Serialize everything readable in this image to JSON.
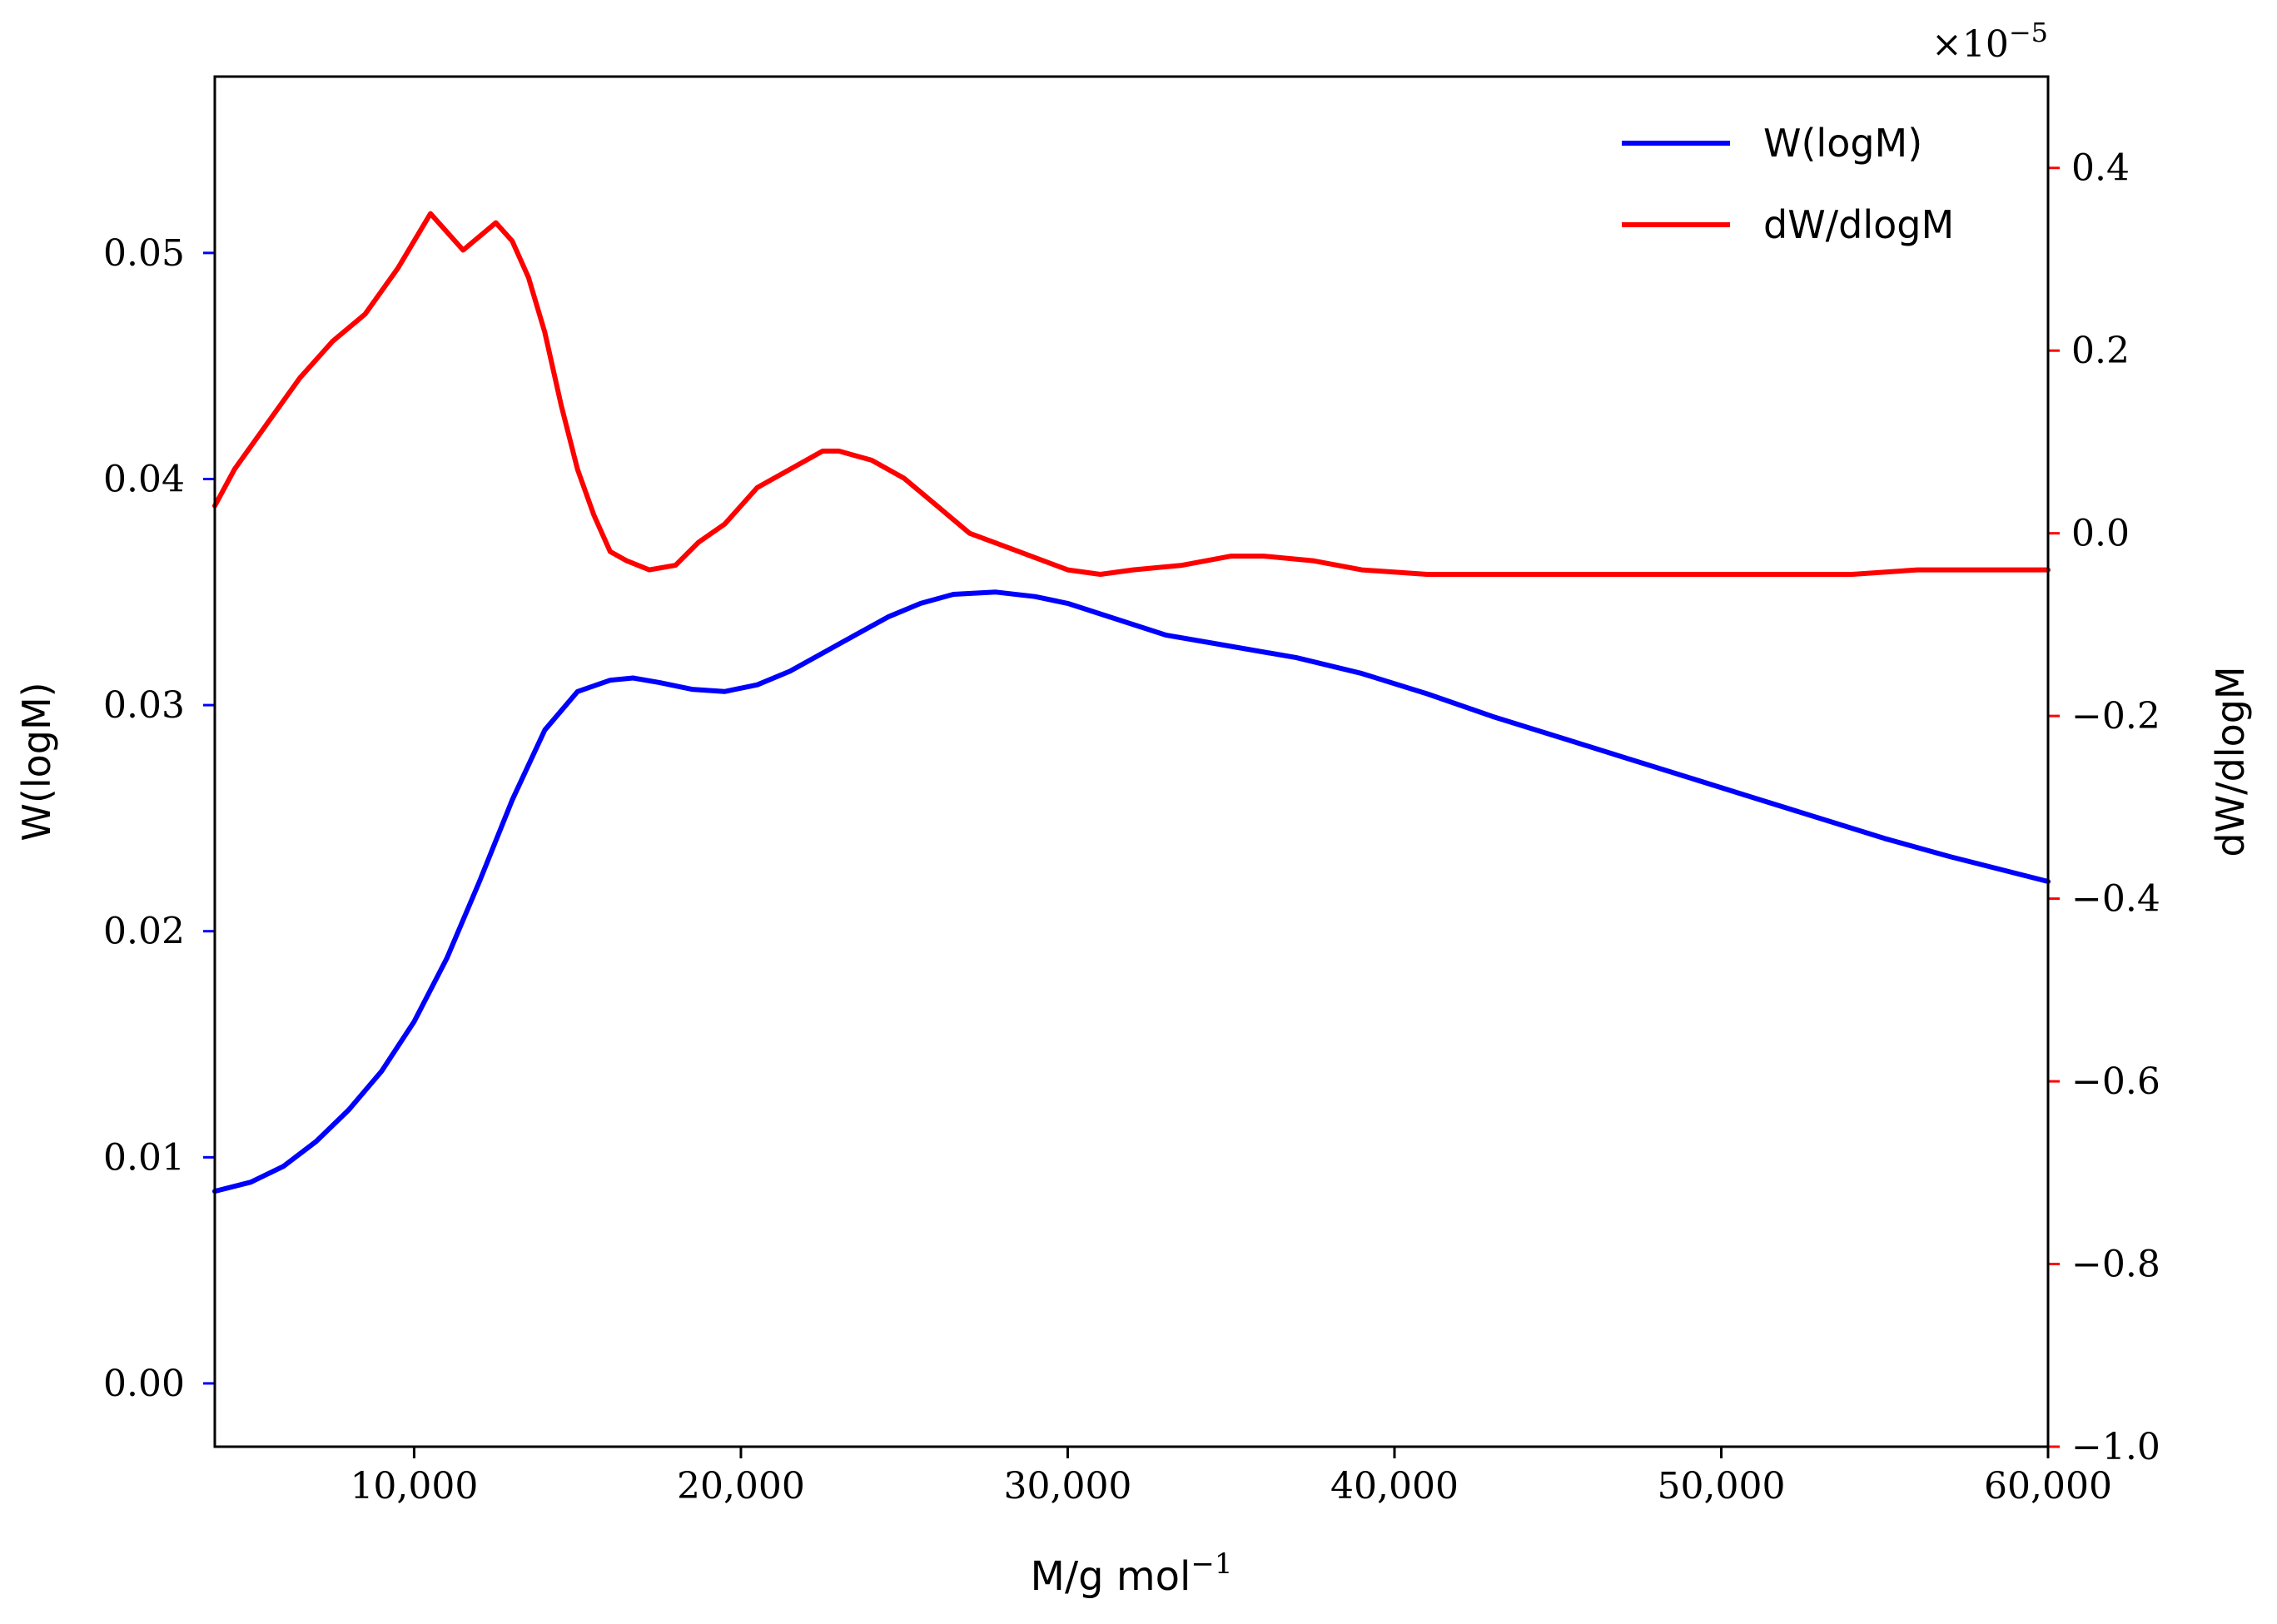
{
  "chart_data": {
    "type": "line",
    "xlabel": "M/g mol",
    "xlabel_exponent": "−1",
    "y_left_label": "W(logM)",
    "y_right_label": "dW/dlogM",
    "right_axis_multiplier": "×10",
    "right_axis_multiplier_exponent": "−5",
    "xlim": [
      3900,
      60000
    ],
    "y_left_lim": [
      -0.0028,
      0.0578
    ],
    "y_right_lim": [
      -1.0,
      0.5
    ],
    "x_ticks": [
      10000,
      20000,
      30000,
      40000,
      50000,
      60000
    ],
    "x_tick_labels": [
      "10,000",
      "20,000",
      "30,000",
      "40,000",
      "50,000",
      "60,000"
    ],
    "y_left_ticks": [
      0.0,
      0.01,
      0.02,
      0.03,
      0.04,
      0.05
    ],
    "y_left_tick_labels": [
      "0.00",
      "0.01",
      "0.02",
      "0.03",
      "0.04",
      "0.05"
    ],
    "y_right_ticks": [
      0.4,
      0.2,
      0.0,
      -0.2,
      -0.4,
      -0.6,
      -0.8,
      -1.0
    ],
    "y_right_tick_labels": [
      "0.4",
      "0.2",
      "0.0",
      "−0.2",
      "−0.4",
      "−0.6",
      "−0.8",
      "−1.0"
    ],
    "legend_position": "top-right",
    "grid": false,
    "colors": {
      "left_axis": "#0000ff",
      "right_axis": "#ff0000",
      "frame": "#000000"
    },
    "series": [
      {
        "name": "W(logM)",
        "axis": "left",
        "color": "#0000ff",
        "x": [
          3900,
          5000,
          6000,
          7000,
          8000,
          9000,
          10000,
          11000,
          12000,
          13000,
          14000,
          15000,
          16000,
          16700,
          17500,
          18500,
          19500,
          20500,
          21500,
          22500,
          23500,
          24500,
          25500,
          26500,
          27800,
          29000,
          30000,
          31500,
          33000,
          35000,
          37000,
          39000,
          41000,
          43000,
          45000,
          47000,
          49000,
          51000,
          53000,
          55000,
          57000,
          60000
        ],
        "y": [
          0.0085,
          0.0089,
          0.0096,
          0.0107,
          0.0121,
          0.0138,
          0.016,
          0.0188,
          0.0222,
          0.0258,
          0.0289,
          0.0306,
          0.0311,
          0.0312,
          0.031,
          0.0307,
          0.0306,
          0.0309,
          0.0315,
          0.0323,
          0.0331,
          0.0339,
          0.0345,
          0.0349,
          0.035,
          0.0348,
          0.0345,
          0.0338,
          0.0331,
          0.0326,
          0.0321,
          0.0314,
          0.0305,
          0.0295,
          0.0286,
          0.0277,
          0.0268,
          0.0259,
          0.025,
          0.0241,
          0.0233,
          0.0222
        ]
      },
      {
        "name": "dW/dlogM",
        "axis": "right",
        "color": "#ff0000",
        "x": [
          3900,
          4500,
          5500,
          6500,
          7500,
          8500,
          9500,
          10500,
          11500,
          12500,
          13000,
          13500,
          14000,
          14500,
          15000,
          15500,
          16000,
          16500,
          17200,
          18000,
          18700,
          19500,
          20500,
          21500,
          22500,
          23000,
          24000,
          25000,
          26000,
          27000,
          28500,
          30000,
          31000,
          32000,
          33500,
          35000,
          36000,
          37500,
          39000,
          41000,
          43000,
          45000,
          47000,
          48500,
          50000,
          52000,
          54000,
          56000,
          58000,
          60000
        ],
        "y": [
          0.03,
          0.07,
          0.12,
          0.17,
          0.21,
          0.24,
          0.29,
          0.35,
          0.31,
          0.34,
          0.32,
          0.28,
          0.22,
          0.14,
          0.07,
          0.02,
          -0.02,
          -0.03,
          -0.04,
          -0.035,
          -0.01,
          0.01,
          0.05,
          0.07,
          0.09,
          0.09,
          0.08,
          0.06,
          0.03,
          0.0,
          -0.02,
          -0.04,
          -0.045,
          -0.04,
          -0.035,
          -0.025,
          -0.025,
          -0.03,
          -0.04,
          -0.045,
          -0.045,
          -0.045,
          -0.045,
          -0.045,
          -0.045,
          -0.045,
          -0.045,
          -0.04,
          -0.04,
          -0.04
        ]
      }
    ]
  }
}
